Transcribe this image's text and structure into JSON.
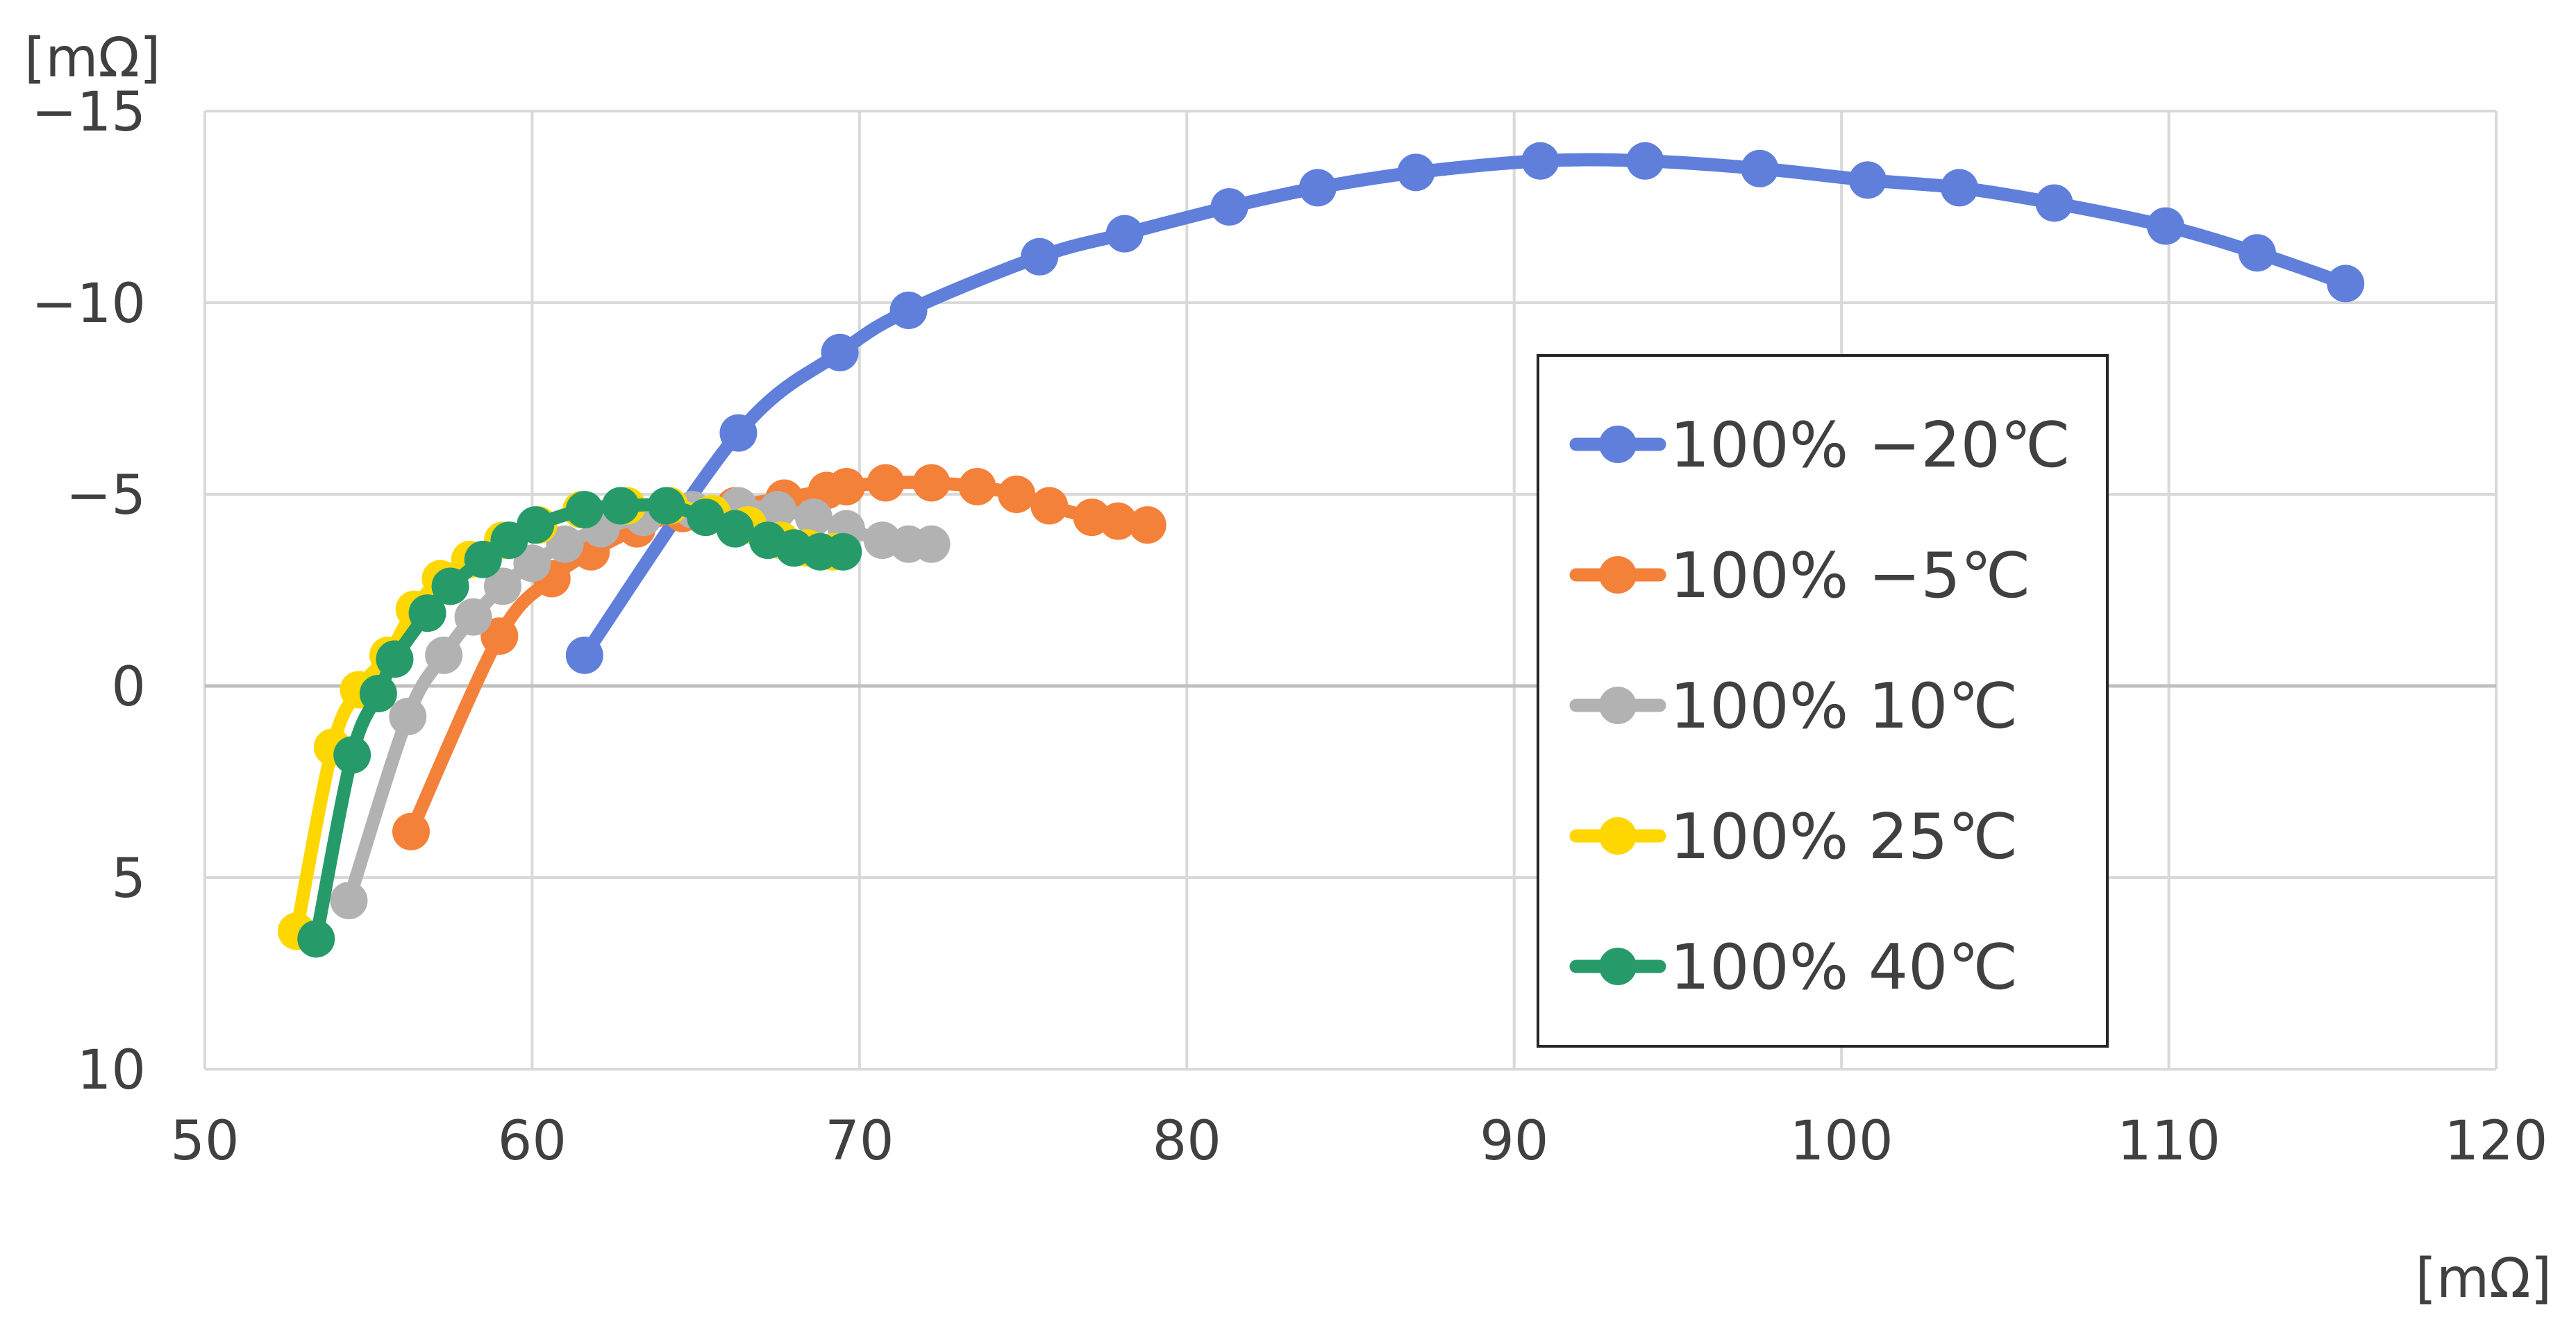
{
  "chart_data": {
    "type": "scatter",
    "title": "",
    "xlabel": "[mΩ]",
    "ylabel": "[mΩ]",
    "xlim": [
      50,
      120
    ],
    "ylim": [
      10,
      -15
    ],
    "y_inverted": true,
    "x_ticks": [
      50,
      60,
      70,
      80,
      90,
      100,
      110,
      120
    ],
    "y_ticks": [
      -15,
      -10,
      -5,
      0,
      5,
      10
    ],
    "grid": true,
    "legend_position": "right",
    "series": [
      {
        "name": "100% -20℃",
        "color": "#5f7fdb",
        "points": [
          [
            61.6,
            -0.8
          ],
          [
            66.3,
            -6.6
          ],
          [
            69.4,
            -8.7
          ],
          [
            71.5,
            -9.8
          ],
          [
            75.5,
            -11.2
          ],
          [
            78.1,
            -11.8
          ],
          [
            81.3,
            -12.5
          ],
          [
            84.0,
            -13.0
          ],
          [
            87.0,
            -13.4
          ],
          [
            90.8,
            -13.7
          ],
          [
            94.0,
            -13.7
          ],
          [
            97.5,
            -13.5
          ],
          [
            100.8,
            -13.2
          ],
          [
            103.6,
            -13.0
          ],
          [
            106.5,
            -12.6
          ],
          [
            109.9,
            -12.0
          ],
          [
            112.7,
            -11.3
          ],
          [
            115.4,
            -10.5
          ]
        ]
      },
      {
        "name": "100% -5℃",
        "color": "#f4813a",
        "points": [
          [
            56.3,
            3.8
          ],
          [
            59.0,
            -1.3
          ],
          [
            60.6,
            -2.8
          ],
          [
            61.8,
            -3.5
          ],
          [
            63.2,
            -4.1
          ],
          [
            64.6,
            -4.5
          ],
          [
            66.2,
            -4.7
          ],
          [
            67.7,
            -4.9
          ],
          [
            69.0,
            -5.1
          ],
          [
            69.6,
            -5.2
          ],
          [
            70.8,
            -5.3
          ],
          [
            72.2,
            -5.3
          ],
          [
            73.6,
            -5.2
          ],
          [
            74.8,
            -5.0
          ],
          [
            75.8,
            -4.7
          ],
          [
            77.1,
            -4.4
          ],
          [
            77.9,
            -4.3
          ],
          [
            78.8,
            -4.2
          ]
        ]
      },
      {
        "name": "100% 10℃",
        "color": "#b2b2b2",
        "points": [
          [
            54.4,
            5.6
          ],
          [
            56.2,
            0.8
          ],
          [
            57.3,
            -0.8
          ],
          [
            58.2,
            -1.8
          ],
          [
            59.1,
            -2.6
          ],
          [
            60.0,
            -3.2
          ],
          [
            61.0,
            -3.7
          ],
          [
            62.1,
            -4.1
          ],
          [
            63.4,
            -4.4
          ],
          [
            64.9,
            -4.6
          ],
          [
            66.3,
            -4.7
          ],
          [
            67.5,
            -4.6
          ],
          [
            68.6,
            -4.4
          ],
          [
            69.6,
            -4.1
          ],
          [
            70.7,
            -3.8
          ],
          [
            71.5,
            -3.7
          ],
          [
            72.2,
            -3.7
          ]
        ]
      },
      {
        "name": "100% 25℃",
        "color": "#ffd700",
        "points": [
          [
            52.8,
            6.4
          ],
          [
            53.9,
            1.6
          ],
          [
            54.7,
            0.1
          ],
          [
            55.6,
            -0.8
          ],
          [
            56.4,
            -2.0
          ],
          [
            57.2,
            -2.8
          ],
          [
            58.1,
            -3.3
          ],
          [
            59.1,
            -3.8
          ],
          [
            60.2,
            -4.2
          ],
          [
            61.5,
            -4.6
          ],
          [
            62.9,
            -4.7
          ],
          [
            64.2,
            -4.7
          ],
          [
            65.5,
            -4.5
          ],
          [
            66.6,
            -4.2
          ],
          [
            67.6,
            -3.8
          ],
          [
            68.4,
            -3.6
          ],
          [
            69.2,
            -3.5
          ]
        ]
      },
      {
        "name": "100% 40℃",
        "color": "#269b69",
        "points": [
          [
            53.4,
            6.6
          ],
          [
            54.5,
            1.8
          ],
          [
            55.3,
            0.2
          ],
          [
            55.8,
            -0.7
          ],
          [
            56.8,
            -1.9
          ],
          [
            57.5,
            -2.6
          ],
          [
            58.5,
            -3.3
          ],
          [
            59.3,
            -3.8
          ],
          [
            60.1,
            -4.2
          ],
          [
            61.6,
            -4.6
          ],
          [
            62.7,
            -4.7
          ],
          [
            64.1,
            -4.7
          ],
          [
            65.3,
            -4.4
          ],
          [
            66.2,
            -4.1
          ],
          [
            67.2,
            -3.8
          ],
          [
            68.0,
            -3.6
          ],
          [
            68.8,
            -3.5
          ],
          [
            69.5,
            -3.5
          ]
        ]
      }
    ]
  }
}
